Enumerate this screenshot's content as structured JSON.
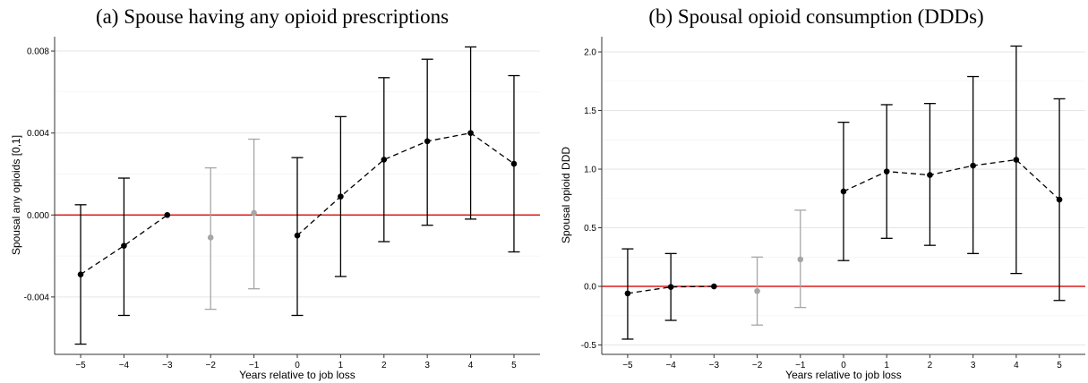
{
  "chart_data": [
    {
      "type": "scatter",
      "panel": "a",
      "title": "(a) Spouse having any opioid prescriptions",
      "xlabel": "Years relative to job loss",
      "ylabel": "Spousal any opioids [0,1]",
      "x_ticks": [
        "-5",
        "-4",
        "-3",
        "-2",
        "-1",
        "0",
        "1",
        "2",
        "3",
        "4",
        "5"
      ],
      "y_ticks": [
        {
          "value": -0.004,
          "label": "-0.004"
        },
        {
          "value": 0.0,
          "label": "0.000"
        },
        {
          "value": 0.004,
          "label": "0.004"
        },
        {
          "value": 0.008,
          "label": "0.008"
        }
      ],
      "xlim": [
        -5.6,
        5.6
      ],
      "ylim": [
        -0.0068,
        0.0087
      ],
      "reference_line": 0,
      "points": [
        {
          "x": -5,
          "y": -0.0029,
          "lo": -0.0063,
          "hi": 0.0005,
          "group": "main"
        },
        {
          "x": -4,
          "y": -0.0015,
          "lo": -0.0049,
          "hi": 0.0018,
          "group": "main"
        },
        {
          "x": -3,
          "y": 0.0,
          "lo": 0.0,
          "hi": 0.0,
          "group": "main"
        },
        {
          "x": -2,
          "y": -0.0011,
          "lo": -0.0046,
          "hi": 0.0023,
          "group": "gray"
        },
        {
          "x": -1,
          "y": 0.0001,
          "lo": -0.0036,
          "hi": 0.0037,
          "group": "gray"
        },
        {
          "x": 0,
          "y": -0.001,
          "lo": -0.0049,
          "hi": 0.0028,
          "group": "main"
        },
        {
          "x": 1,
          "y": 0.0009,
          "lo": -0.003,
          "hi": 0.0048,
          "group": "main"
        },
        {
          "x": 2,
          "y": 0.0027,
          "lo": -0.0013,
          "hi": 0.0067,
          "group": "main"
        },
        {
          "x": 3,
          "y": 0.0036,
          "lo": -0.0005,
          "hi": 0.0076,
          "group": "main"
        },
        {
          "x": 4,
          "y": 0.004,
          "lo": -0.0002,
          "hi": 0.0082,
          "group": "main"
        },
        {
          "x": 5,
          "y": 0.0025,
          "lo": -0.0018,
          "hi": 0.0068,
          "group": "main"
        }
      ],
      "connect_segments": [
        [
          -5,
          -4,
          -3
        ],
        [
          0,
          1,
          2,
          3,
          4,
          5
        ]
      ],
      "colors": {
        "main": "#000000",
        "gray": "#a6a6a6",
        "reference": "#dd1c1c",
        "grid": "#e5e5e5"
      }
    },
    {
      "type": "scatter",
      "panel": "b",
      "title": "(b) Spousal opioid consumption (DDDs)",
      "xlabel": "Years relative to job loss",
      "ylabel": "Spousal opioid DDD",
      "x_ticks": [
        "-5",
        "-4",
        "-3",
        "-2",
        "-1",
        "0",
        "1",
        "2",
        "3",
        "4",
        "5"
      ],
      "y_ticks": [
        {
          "value": -0.5,
          "label": "-0.5"
        },
        {
          "value": 0.0,
          "label": "0.0"
        },
        {
          "value": 0.5,
          "label": "0.5"
        },
        {
          "value": 1.0,
          "label": "1.0"
        },
        {
          "value": 1.5,
          "label": "1.5"
        },
        {
          "value": 2.0,
          "label": "2.0"
        }
      ],
      "xlim": [
        -5.6,
        5.6
      ],
      "ylim": [
        -0.58,
        2.13
      ],
      "reference_line": 0,
      "points": [
        {
          "x": -5,
          "y": -0.06,
          "lo": -0.45,
          "hi": 0.32,
          "group": "main"
        },
        {
          "x": -4,
          "y": -0.005,
          "lo": -0.29,
          "hi": 0.28,
          "group": "main"
        },
        {
          "x": -3,
          "y": 0.0,
          "lo": 0.0,
          "hi": 0.0,
          "group": "main"
        },
        {
          "x": -2,
          "y": -0.04,
          "lo": -0.33,
          "hi": 0.25,
          "group": "gray"
        },
        {
          "x": -1,
          "y": 0.23,
          "lo": -0.18,
          "hi": 0.65,
          "group": "gray"
        },
        {
          "x": 0,
          "y": 0.81,
          "lo": 0.22,
          "hi": 1.4,
          "group": "main"
        },
        {
          "x": 1,
          "y": 0.98,
          "lo": 0.41,
          "hi": 1.55,
          "group": "main"
        },
        {
          "x": 2,
          "y": 0.95,
          "lo": 0.35,
          "hi": 1.56,
          "group": "main"
        },
        {
          "x": 3,
          "y": 1.03,
          "lo": 0.28,
          "hi": 1.79,
          "group": "main"
        },
        {
          "x": 4,
          "y": 1.08,
          "lo": 0.11,
          "hi": 2.05,
          "group": "main"
        },
        {
          "x": 5,
          "y": 0.74,
          "lo": -0.12,
          "hi": 1.6,
          "group": "main"
        }
      ],
      "connect_segments": [
        [
          -5,
          -4,
          -3
        ],
        [
          0,
          1,
          2,
          3,
          4,
          5
        ]
      ],
      "colors": {
        "main": "#000000",
        "gray": "#a6a6a6",
        "reference": "#dd1c1c",
        "grid": "#e5e5e5"
      }
    }
  ]
}
